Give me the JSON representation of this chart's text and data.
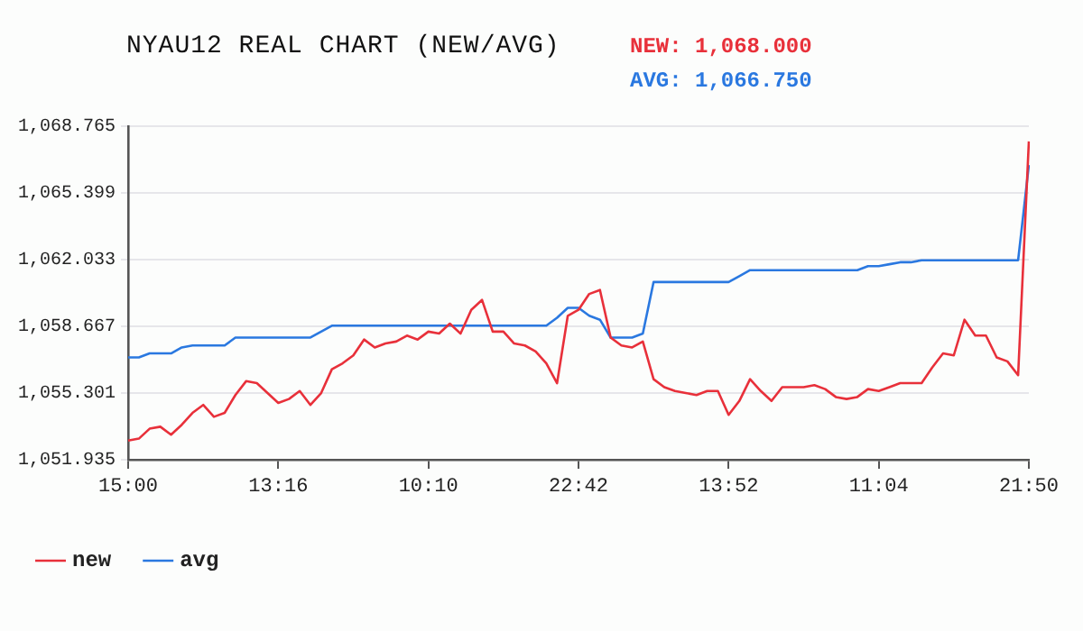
{
  "chart_data": {
    "type": "line",
    "title": "NYAU12 REAL CHART (NEW/AVG)",
    "annotations": [
      "NEW: 1,068.000",
      "AVG: 1,066.750"
    ],
    "categories": [
      "15:00",
      null,
      null,
      null,
      null,
      null,
      null,
      null,
      null,
      null,
      null,
      null,
      null,
      null,
      "13:16",
      null,
      null,
      null,
      null,
      null,
      null,
      null,
      null,
      null,
      null,
      null,
      null,
      null,
      "10:10",
      null,
      null,
      null,
      null,
      null,
      null,
      null,
      null,
      null,
      null,
      null,
      null,
      null,
      "22:42",
      null,
      null,
      null,
      null,
      null,
      null,
      null,
      null,
      null,
      null,
      null,
      null,
      null,
      "13:52",
      null,
      null,
      null,
      null,
      null,
      null,
      null,
      null,
      null,
      null,
      null,
      null,
      null,
      "11:04",
      null,
      null,
      null,
      null,
      null,
      null,
      null,
      null,
      null,
      null,
      null,
      null,
      null,
      "21:50"
    ],
    "ylim": [
      1051.935,
      1068.765
    ],
    "yticks": [
      {
        "value": 1051.935,
        "label": "1,051.935"
      },
      {
        "value": 1055.301,
        "label": "1,055.301"
      },
      {
        "value": 1058.667,
        "label": "1,058.667"
      },
      {
        "value": 1062.033,
        "label": "1,062.033"
      },
      {
        "value": 1065.399,
        "label": "1,065.399"
      },
      {
        "value": 1068.765,
        "label": "1,068.765"
      }
    ],
    "grid": "y",
    "legend": "bottom left",
    "marker": "none",
    "line_style": "solid",
    "series": [
      {
        "name": "new",
        "color": "#e8303a",
        "values": [
          1052.9,
          1053.0,
          1053.5,
          1053.6,
          1053.2,
          1053.7,
          1054.3,
          1054.7,
          1054.1,
          1054.3,
          1055.2,
          1055.9,
          1055.8,
          1055.3,
          1054.8,
          1055.0,
          1055.4,
          1054.7,
          1055.3,
          1056.5,
          1056.8,
          1057.2,
          1058.0,
          1057.6,
          1057.8,
          1057.9,
          1058.2,
          1058.0,
          1058.4,
          1058.3,
          1058.8,
          1058.3,
          1059.5,
          1060.0,
          1058.4,
          1058.4,
          1057.8,
          1057.7,
          1057.4,
          1056.8,
          1055.8,
          1059.2,
          1059.5,
          1060.3,
          1060.5,
          1058.1,
          1057.7,
          1057.6,
          1057.9,
          1056.0,
          1055.6,
          1055.4,
          1055.3,
          1055.2,
          1055.4,
          1055.4,
          1054.2,
          1054.9,
          1056.0,
          1055.4,
          1054.9,
          1055.6,
          1055.6,
          1055.6,
          1055.7,
          1055.5,
          1055.1,
          1055.0,
          1055.1,
          1055.5,
          1055.4,
          1055.6,
          1055.8,
          1055.8,
          1055.8,
          1056.6,
          1057.3,
          1057.2,
          1059.0,
          1058.2,
          1058.2,
          1057.1,
          1056.9,
          1056.2,
          1068.0
        ]
      },
      {
        "name": "avg",
        "color": "#2a78e0",
        "values": [
          1057.1,
          1057.1,
          1057.3,
          1057.3,
          1057.3,
          1057.6,
          1057.7,
          1057.7,
          1057.7,
          1057.7,
          1058.1,
          1058.1,
          1058.1,
          1058.1,
          1058.1,
          1058.1,
          1058.1,
          1058.1,
          1058.4,
          1058.7,
          1058.7,
          1058.7,
          1058.7,
          1058.7,
          1058.7,
          1058.7,
          1058.7,
          1058.7,
          1058.7,
          1058.7,
          1058.7,
          1058.7,
          1058.7,
          1058.7,
          1058.7,
          1058.7,
          1058.7,
          1058.7,
          1058.7,
          1058.7,
          1059.1,
          1059.6,
          1059.6,
          1059.2,
          1059.0,
          1058.1,
          1058.1,
          1058.1,
          1058.3,
          1060.9,
          1060.9,
          1060.9,
          1060.9,
          1060.9,
          1060.9,
          1060.9,
          1060.9,
          1061.2,
          1061.5,
          1061.5,
          1061.5,
          1061.5,
          1061.5,
          1061.5,
          1061.5,
          1061.5,
          1061.5,
          1061.5,
          1061.5,
          1061.7,
          1061.7,
          1061.8,
          1061.9,
          1061.9,
          1062.0,
          1062.0,
          1062.0,
          1062.0,
          1062.0,
          1062.0,
          1062.0,
          1062.0,
          1062.0,
          1062.0,
          1066.8
        ]
      }
    ]
  }
}
